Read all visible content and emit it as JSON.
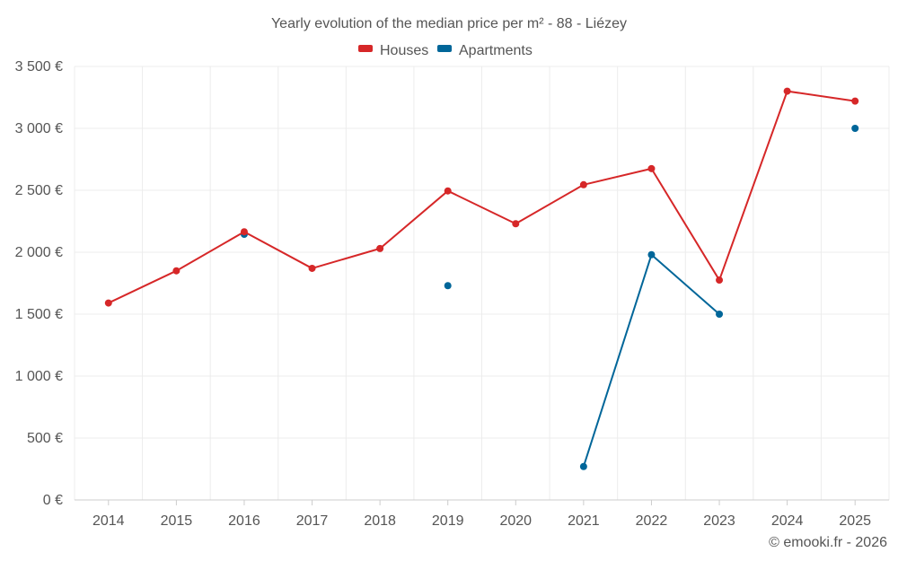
{
  "chart_data": {
    "type": "line",
    "title": "Yearly evolution of the median price per m² - 88 - Liézey",
    "categories": [
      "2014",
      "2015",
      "2016",
      "2017",
      "2018",
      "2019",
      "2020",
      "2021",
      "2022",
      "2023",
      "2024",
      "2025"
    ],
    "series": [
      {
        "name": "Houses",
        "color": "#d62728",
        "values": [
          1590,
          1850,
          2165,
          1870,
          2030,
          2495,
          2230,
          2545,
          2675,
          1775,
          3300,
          3220
        ]
      },
      {
        "name": "Apartments",
        "color": "#006699",
        "values": [
          null,
          null,
          2145,
          null,
          null,
          1730,
          null,
          270,
          1980,
          1500,
          null,
          3000
        ]
      }
    ],
    "ylim": [
      0,
      3500
    ],
    "y_ticks": [
      0,
      500,
      1000,
      1500,
      2000,
      2500,
      3000,
      3500
    ],
    "y_tick_labels": [
      "0 €",
      "500 €",
      "1 000 €",
      "1 500 €",
      "2 000 €",
      "2 500 €",
      "3 000 €",
      "3 500 €"
    ],
    "legend_position": "top-center",
    "grid": true
  },
  "credit": "© emooki.fr - 2026"
}
